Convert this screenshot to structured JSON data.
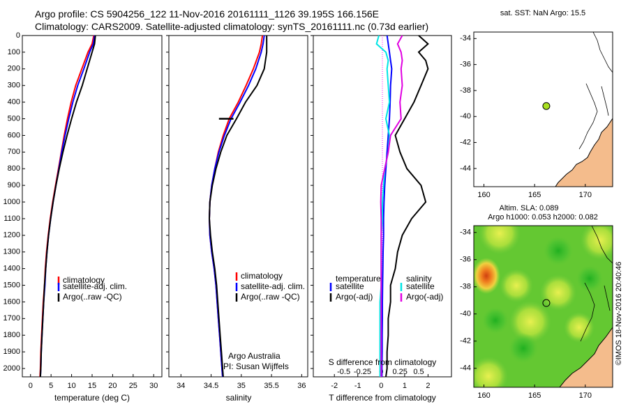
{
  "header": {
    "line1": "Argo profile: CS 5904256_122 11-Nov-2016 20161111_1126 39.195S 166.156E",
    "line2": "Climatology: CARS2009. Satellite-adjusted climatology: synTS_20161111.nc (0.73d earlier)"
  },
  "colors": {
    "climatology": "#ff0000",
    "satellite": "#0000ff",
    "argo": "#000000",
    "sat_salinity": "#00e5e5",
    "argo_salinity": "#e000e0",
    "land": "#f4bc8c",
    "profile_marker": "#a8e020"
  },
  "credits": {
    "group": "Argo Australia",
    "pi": "PI: Susan Wijffels",
    "imos": "©IMOS 18-Nov-2016 20:40:46"
  },
  "legend_temp_sal": [
    "climatology",
    "satellite-adj. clim.",
    "Argo(..raw -QC)"
  ],
  "legend_diff": {
    "temperature_title": "temperature",
    "salinity_title": "salinity",
    "items": [
      "satellite",
      "Argo(-adj)"
    ]
  },
  "chart_data": [
    {
      "type": "line",
      "name": "temperature profile",
      "xlabel": "temperature (deg C)",
      "ylabel": "",
      "xlim": [
        -2,
        32
      ],
      "ylim": [
        2050,
        0
      ],
      "xticks": [
        0,
        5,
        10,
        15,
        20,
        25,
        30
      ],
      "yticks": [
        0,
        100,
        200,
        300,
        400,
        500,
        600,
        700,
        800,
        900,
        1000,
        1100,
        1200,
        1300,
        1400,
        1500,
        1600,
        1700,
        1800,
        1900,
        2000
      ],
      "depth": [
        0,
        50,
        100,
        200,
        300,
        400,
        500,
        600,
        700,
        800,
        900,
        1000,
        1100,
        1200,
        1300,
        1400,
        1500,
        1600,
        1700,
        1800,
        1900,
        2000,
        2050
      ],
      "series": [
        {
          "name": "climatology",
          "x": [
            15.4,
            15.0,
            14.0,
            12.5,
            11.0,
            9.9,
            9.0,
            8.2,
            7.5,
            6.8,
            6.1,
            5.4,
            4.8,
            4.3,
            3.9,
            3.6,
            3.4,
            3.1,
            2.9,
            2.7,
            2.5,
            2.4,
            2.3
          ]
        },
        {
          "name": "satellite-adj. clim.",
          "x": [
            15.6,
            15.3,
            14.4,
            13.0,
            11.5,
            10.3,
            9.3,
            8.4,
            7.6,
            6.9,
            6.2,
            5.5,
            4.9,
            4.4,
            4.0,
            3.7,
            3.5,
            3.2,
            3.0,
            2.8,
            2.6,
            2.5,
            2.4
          ]
        },
        {
          "name": "Argo(..raw -QC)",
          "x": [
            15.8,
            15.6,
            15.0,
            13.8,
            12.6,
            11.2,
            10.0,
            8.9,
            7.9,
            7.0,
            6.2,
            5.5,
            4.9,
            4.4,
            4.0,
            3.7,
            3.4,
            3.2,
            3.0,
            2.8,
            2.6,
            2.5,
            2.4
          ]
        }
      ]
    },
    {
      "type": "line",
      "name": "salinity profile",
      "xlabel": "salinity",
      "ylabel": "",
      "xlim": [
        33.8,
        36.1
      ],
      "ylim": [
        2050,
        0
      ],
      "xticks": [
        34,
        34.5,
        35,
        35.5,
        36
      ],
      "depth": [
        0,
        50,
        100,
        200,
        300,
        400,
        500,
        600,
        700,
        800,
        900,
        1000,
        1100,
        1200,
        1300,
        1400,
        1500,
        1600,
        1700,
        1800,
        1900,
        2000,
        2050
      ],
      "series": [
        {
          "name": "climatology",
          "x": [
            35.35,
            35.33,
            35.3,
            35.2,
            35.08,
            34.95,
            34.8,
            34.7,
            34.62,
            34.56,
            34.51,
            34.48,
            34.47,
            34.48,
            34.51,
            34.55,
            34.58,
            34.6,
            34.62,
            34.64,
            34.66,
            34.68,
            34.69
          ]
        },
        {
          "name": "satellite-adj. clim.",
          "x": [
            35.38,
            35.36,
            35.33,
            35.24,
            35.12,
            34.98,
            34.83,
            34.72,
            34.63,
            34.56,
            34.51,
            34.48,
            34.47,
            34.48,
            34.51,
            34.55,
            34.58,
            34.6,
            34.62,
            34.64,
            34.66,
            34.68,
            34.69
          ]
        },
        {
          "name": "Argo(..raw -QC)",
          "x": [
            35.42,
            35.42,
            35.42,
            35.38,
            35.26,
            35.07,
            34.92,
            34.76,
            34.66,
            34.58,
            34.52,
            34.48,
            34.47,
            34.49,
            34.52,
            34.56,
            34.59,
            34.61,
            34.63,
            34.65,
            34.67,
            34.69,
            34.7
          ]
        }
      ],
      "marker": {
        "depth": 500,
        "x": [
          34.63,
          34.87
        ]
      }
    },
    {
      "type": "line",
      "name": "difference from climatology",
      "xlabel_top": "S difference from climatology",
      "xlabel": "T difference from climatology",
      "xlim_T": [
        -2.9,
        3.0
      ],
      "xticks_T": [
        -2,
        -1,
        0,
        1,
        2
      ],
      "xticks_S": [
        "-0.5",
        "-0.25",
        "0",
        "0.25",
        "0.5"
      ],
      "ylim": [
        2050,
        0
      ],
      "depth": [
        0,
        50,
        100,
        150,
        200,
        300,
        400,
        500,
        600,
        700,
        800,
        900,
        1000,
        1100,
        1200,
        1300,
        1400,
        1500,
        1600,
        1700,
        1800,
        1900,
        2000,
        2050
      ],
      "series": [
        {
          "name": "temperature satellite",
          "x": [
            0.25,
            0.3,
            0.35,
            0.4,
            0.45,
            0.4,
            0.38,
            0.35,
            0.3,
            0.25,
            0.2,
            0.15,
            0.12,
            0.1,
            0.1,
            0.08,
            0.07,
            0.06,
            0.05,
            0.05,
            0.04,
            0.04,
            0.03,
            0.03
          ]
        },
        {
          "name": "temperature Argo(-adj)",
          "x": [
            1.6,
            2.0,
            1.6,
            1.9,
            2.0,
            1.7,
            1.4,
            1.0,
            0.6,
            0.8,
            1.1,
            1.7,
            1.9,
            1.3,
            0.9,
            0.7,
            0.6,
            0.4,
            0.4,
            0.3,
            0.3,
            0.25,
            0.25,
            0.2
          ]
        },
        {
          "name": "salinity satellite",
          "x": [
            -0.1,
            -0.2,
            0.2,
            0.3,
            0.25,
            0.3,
            0.35,
            0.2,
            0.35,
            0.3,
            0.15,
            0.1,
            0.05,
            0.05,
            0.0,
            0.0,
            0.0,
            0.0,
            -0.05,
            -0.05,
            -0.05,
            -0.05,
            -0.05,
            -0.05
          ]
        },
        {
          "name": "salinity Argo(-adj)",
          "x": [
            0.9,
            0.7,
            0.85,
            0.9,
            0.85,
            0.9,
            0.8,
            0.85,
            0.4,
            0.3,
            0.15,
            0.0,
            -0.02,
            0.0,
            0.0,
            0.0,
            0.0,
            0.0,
            0.0,
            0.0,
            0.0,
            0.0,
            0.0,
            0.0
          ]
        }
      ]
    },
    {
      "type": "scatter",
      "name": "sat SST map",
      "title": "sat. SST: NaN Argo: 15.5",
      "xlim": [
        159,
        172.7
      ],
      "ylim": [
        -45.4,
        -33.5
      ],
      "xticks": [
        160,
        165,
        170
      ],
      "yticks": [
        -34,
        -36,
        -38,
        -40,
        -42,
        -44
      ],
      "point": {
        "lon": 166.156,
        "lat": -39.195
      }
    },
    {
      "type": "heatmap",
      "name": "altimetry SLA map",
      "title_line1": "Altim. SLA: 0.089",
      "title_line2": "Argo h1000: 0.053 h2000: 0.082",
      "xlim": [
        159,
        172.7
      ],
      "ylim": [
        -45.4,
        -33.5
      ],
      "xticks": [
        160,
        165,
        170
      ],
      "yticks": [
        -34,
        -36,
        -38,
        -40,
        -42,
        -44
      ],
      "point": {
        "lon": 166.156,
        "lat": -39.195
      }
    }
  ]
}
